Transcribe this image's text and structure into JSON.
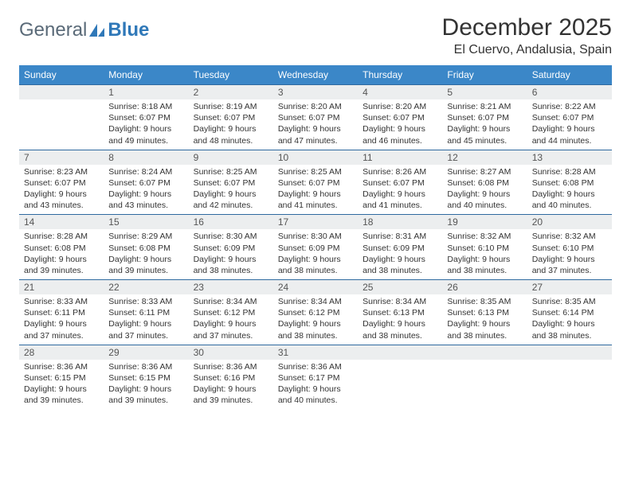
{
  "logo": {
    "text1": "General",
    "text2": "Blue"
  },
  "title": "December 2025",
  "location": "El Cuervo, Andalusia, Spain",
  "colors": {
    "header_bg": "#3b87c8",
    "header_text": "#ffffff",
    "daynum_bg": "#eceeef",
    "row_border": "#2f6aa0",
    "body_text": "#333333",
    "logo_gray": "#5a6a78",
    "logo_blue": "#2f78b8"
  },
  "weekdays": [
    "Sunday",
    "Monday",
    "Tuesday",
    "Wednesday",
    "Thursday",
    "Friday",
    "Saturday"
  ],
  "cells": [
    {
      "day": "",
      "sunrise": "",
      "sunset": "",
      "daylight": ""
    },
    {
      "day": "1",
      "sunrise": "Sunrise: 8:18 AM",
      "sunset": "Sunset: 6:07 PM",
      "daylight": "Daylight: 9 hours and 49 minutes."
    },
    {
      "day": "2",
      "sunrise": "Sunrise: 8:19 AM",
      "sunset": "Sunset: 6:07 PM",
      "daylight": "Daylight: 9 hours and 48 minutes."
    },
    {
      "day": "3",
      "sunrise": "Sunrise: 8:20 AM",
      "sunset": "Sunset: 6:07 PM",
      "daylight": "Daylight: 9 hours and 47 minutes."
    },
    {
      "day": "4",
      "sunrise": "Sunrise: 8:20 AM",
      "sunset": "Sunset: 6:07 PM",
      "daylight": "Daylight: 9 hours and 46 minutes."
    },
    {
      "day": "5",
      "sunrise": "Sunrise: 8:21 AM",
      "sunset": "Sunset: 6:07 PM",
      "daylight": "Daylight: 9 hours and 45 minutes."
    },
    {
      "day": "6",
      "sunrise": "Sunrise: 8:22 AM",
      "sunset": "Sunset: 6:07 PM",
      "daylight": "Daylight: 9 hours and 44 minutes."
    },
    {
      "day": "7",
      "sunrise": "Sunrise: 8:23 AM",
      "sunset": "Sunset: 6:07 PM",
      "daylight": "Daylight: 9 hours and 43 minutes."
    },
    {
      "day": "8",
      "sunrise": "Sunrise: 8:24 AM",
      "sunset": "Sunset: 6:07 PM",
      "daylight": "Daylight: 9 hours and 43 minutes."
    },
    {
      "day": "9",
      "sunrise": "Sunrise: 8:25 AM",
      "sunset": "Sunset: 6:07 PM",
      "daylight": "Daylight: 9 hours and 42 minutes."
    },
    {
      "day": "10",
      "sunrise": "Sunrise: 8:25 AM",
      "sunset": "Sunset: 6:07 PM",
      "daylight": "Daylight: 9 hours and 41 minutes."
    },
    {
      "day": "11",
      "sunrise": "Sunrise: 8:26 AM",
      "sunset": "Sunset: 6:07 PM",
      "daylight": "Daylight: 9 hours and 41 minutes."
    },
    {
      "day": "12",
      "sunrise": "Sunrise: 8:27 AM",
      "sunset": "Sunset: 6:08 PM",
      "daylight": "Daylight: 9 hours and 40 minutes."
    },
    {
      "day": "13",
      "sunrise": "Sunrise: 8:28 AM",
      "sunset": "Sunset: 6:08 PM",
      "daylight": "Daylight: 9 hours and 40 minutes."
    },
    {
      "day": "14",
      "sunrise": "Sunrise: 8:28 AM",
      "sunset": "Sunset: 6:08 PM",
      "daylight": "Daylight: 9 hours and 39 minutes."
    },
    {
      "day": "15",
      "sunrise": "Sunrise: 8:29 AM",
      "sunset": "Sunset: 6:08 PM",
      "daylight": "Daylight: 9 hours and 39 minutes."
    },
    {
      "day": "16",
      "sunrise": "Sunrise: 8:30 AM",
      "sunset": "Sunset: 6:09 PM",
      "daylight": "Daylight: 9 hours and 38 minutes."
    },
    {
      "day": "17",
      "sunrise": "Sunrise: 8:30 AM",
      "sunset": "Sunset: 6:09 PM",
      "daylight": "Daylight: 9 hours and 38 minutes."
    },
    {
      "day": "18",
      "sunrise": "Sunrise: 8:31 AM",
      "sunset": "Sunset: 6:09 PM",
      "daylight": "Daylight: 9 hours and 38 minutes."
    },
    {
      "day": "19",
      "sunrise": "Sunrise: 8:32 AM",
      "sunset": "Sunset: 6:10 PM",
      "daylight": "Daylight: 9 hours and 38 minutes."
    },
    {
      "day": "20",
      "sunrise": "Sunrise: 8:32 AM",
      "sunset": "Sunset: 6:10 PM",
      "daylight": "Daylight: 9 hours and 37 minutes."
    },
    {
      "day": "21",
      "sunrise": "Sunrise: 8:33 AM",
      "sunset": "Sunset: 6:11 PM",
      "daylight": "Daylight: 9 hours and 37 minutes."
    },
    {
      "day": "22",
      "sunrise": "Sunrise: 8:33 AM",
      "sunset": "Sunset: 6:11 PM",
      "daylight": "Daylight: 9 hours and 37 minutes."
    },
    {
      "day": "23",
      "sunrise": "Sunrise: 8:34 AM",
      "sunset": "Sunset: 6:12 PM",
      "daylight": "Daylight: 9 hours and 37 minutes."
    },
    {
      "day": "24",
      "sunrise": "Sunrise: 8:34 AM",
      "sunset": "Sunset: 6:12 PM",
      "daylight": "Daylight: 9 hours and 38 minutes."
    },
    {
      "day": "25",
      "sunrise": "Sunrise: 8:34 AM",
      "sunset": "Sunset: 6:13 PM",
      "daylight": "Daylight: 9 hours and 38 minutes."
    },
    {
      "day": "26",
      "sunrise": "Sunrise: 8:35 AM",
      "sunset": "Sunset: 6:13 PM",
      "daylight": "Daylight: 9 hours and 38 minutes."
    },
    {
      "day": "27",
      "sunrise": "Sunrise: 8:35 AM",
      "sunset": "Sunset: 6:14 PM",
      "daylight": "Daylight: 9 hours and 38 minutes."
    },
    {
      "day": "28",
      "sunrise": "Sunrise: 8:36 AM",
      "sunset": "Sunset: 6:15 PM",
      "daylight": "Daylight: 9 hours and 39 minutes."
    },
    {
      "day": "29",
      "sunrise": "Sunrise: 8:36 AM",
      "sunset": "Sunset: 6:15 PM",
      "daylight": "Daylight: 9 hours and 39 minutes."
    },
    {
      "day": "30",
      "sunrise": "Sunrise: 8:36 AM",
      "sunset": "Sunset: 6:16 PM",
      "daylight": "Daylight: 9 hours and 39 minutes."
    },
    {
      "day": "31",
      "sunrise": "Sunrise: 8:36 AM",
      "sunset": "Sunset: 6:17 PM",
      "daylight": "Daylight: 9 hours and 40 minutes."
    },
    {
      "day": "",
      "sunrise": "",
      "sunset": "",
      "daylight": ""
    },
    {
      "day": "",
      "sunrise": "",
      "sunset": "",
      "daylight": ""
    },
    {
      "day": "",
      "sunrise": "",
      "sunset": "",
      "daylight": ""
    }
  ]
}
